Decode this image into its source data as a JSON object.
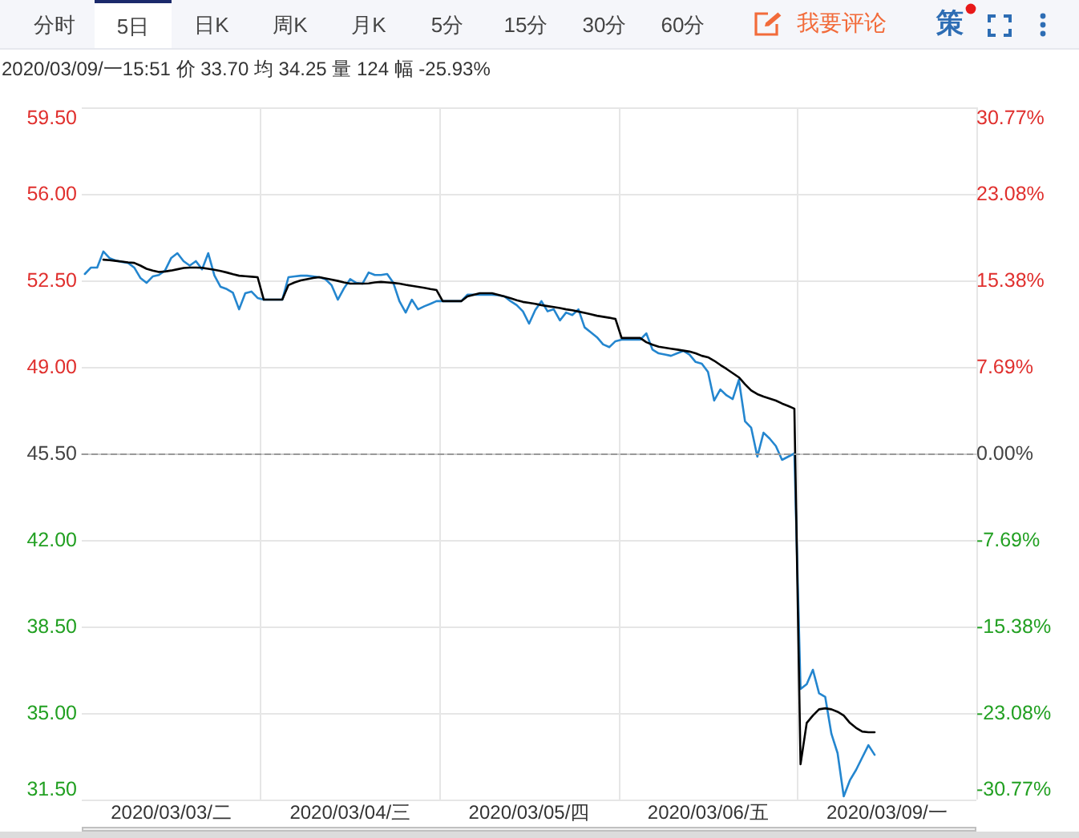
{
  "chart_data": {
    "type": "line",
    "annotations": [
      "分时",
      "5日",
      "日K",
      "周K",
      "月K",
      "5分",
      "15分",
      "30分",
      "60分",
      "我要评论",
      "策",
      "2020/03/09/一15:51 价 33.70 均 34.25 量 124 幅 -25.93%"
    ],
    "categories": [
      null,
      null,
      null,
      null,
      null,
      null,
      null,
      null,
      null,
      null,
      null,
      null,
      null,
      null,
      "2020/03/03/二",
      null,
      null,
      null,
      null,
      null,
      null,
      null,
      null,
      null,
      null,
      null,
      null,
      null,
      null,
      null,
      null,
      null,
      null,
      null,
      null,
      null,
      null,
      null,
      null,
      null,
      null,
      null,
      null,
      "2020/03/04/三",
      null,
      null,
      null,
      null,
      null,
      null,
      null,
      null,
      null,
      null,
      null,
      null,
      null,
      null,
      null,
      null,
      null,
      null,
      null,
      null,
      null,
      null,
      null,
      null,
      null,
      null,
      null,
      null,
      "2020/03/05/四",
      null,
      null,
      null,
      null,
      null,
      null,
      null,
      null,
      null,
      null,
      null,
      null,
      null,
      null,
      null,
      null,
      null,
      null,
      null,
      null,
      null,
      null,
      null,
      null,
      null,
      null,
      null,
      null,
      "2020/03/06/五",
      null,
      null,
      null,
      null,
      null,
      null,
      null,
      null,
      null,
      null,
      null,
      null,
      null,
      null,
      null,
      null,
      null,
      null,
      null,
      null,
      null,
      null,
      null,
      null,
      null,
      null,
      null,
      null,
      "2020/03/09/一",
      null,
      null,
      null,
      null,
      null,
      null,
      null,
      null,
      null,
      null,
      null,
      null,
      null,
      null
    ],
    "series": [
      {
        "color": "#2486cf",
        "values": [
          52.76,
          53.02,
          53.02,
          53.67,
          53.4,
          53.3,
          53.25,
          53.21,
          53.02,
          52.6,
          52.4,
          52.66,
          52.72,
          52.9,
          53.41,
          53.6,
          53.28,
          53.1,
          53.28,
          52.95,
          53.6,
          52.7,
          52.24,
          52.15,
          52.0,
          51.33,
          51.98,
          52.05,
          51.79,
          51.72,
          51.72,
          51.72,
          51.72,
          52.63,
          52.66,
          52.69,
          52.69,
          52.66,
          52.63,
          52.55,
          52.3,
          51.72,
          52.18,
          52.55,
          52.4,
          52.37,
          52.82,
          52.72,
          52.72,
          52.76,
          52.4,
          51.65,
          51.2,
          51.72,
          51.33,
          51.45,
          51.55,
          51.66,
          51.66,
          51.66,
          51.66,
          51.66,
          51.92,
          51.92,
          51.92,
          51.92,
          51.92,
          51.9,
          51.85,
          51.66,
          51.5,
          51.25,
          50.75,
          51.3,
          51.66,
          51.25,
          51.33,
          50.88,
          51.2,
          51.1,
          51.33,
          50.6,
          50.4,
          50.2,
          49.91,
          49.8,
          50.04,
          50.1,
          50.1,
          50.1,
          50.1,
          50.36,
          49.7,
          49.55,
          49.5,
          49.45,
          49.55,
          49.65,
          49.5,
          49.2,
          49.13,
          48.8,
          47.64,
          48.09,
          47.85,
          47.7,
          48.48,
          46.8,
          46.54,
          45.37,
          46.34,
          46.1,
          45.8,
          45.24,
          45.37,
          45.5,
          35.97,
          36.17,
          36.75,
          35.8,
          35.65,
          34.16,
          33.38,
          31.63,
          32.28,
          32.7,
          33.2,
          33.7,
          33.31,
          null,
          null,
          null,
          null,
          null,
          null,
          null,
          null,
          null,
          null,
          null,
          null,
          null,
          null,
          null,
          null
        ]
      },
      {
        "color": "#000000",
        "values": [
          null,
          null,
          null,
          53.34,
          53.32,
          53.29,
          53.26,
          53.23,
          53.21,
          53.1,
          52.97,
          52.9,
          52.84,
          52.86,
          52.9,
          52.95,
          53.0,
          53.02,
          53.02,
          53.01,
          52.97,
          52.93,
          52.88,
          52.82,
          52.75,
          52.69,
          52.67,
          52.65,
          52.63,
          51.72,
          51.72,
          51.72,
          51.72,
          52.31,
          52.42,
          52.5,
          52.55,
          52.6,
          52.63,
          52.58,
          52.53,
          52.48,
          52.42,
          52.37,
          52.37,
          52.37,
          52.38,
          52.42,
          52.44,
          52.42,
          52.4,
          52.37,
          52.32,
          52.28,
          52.24,
          52.2,
          52.15,
          52.11,
          51.66,
          51.66,
          51.66,
          51.66,
          51.85,
          51.92,
          51.98,
          51.98,
          51.98,
          51.92,
          51.85,
          51.78,
          51.7,
          51.63,
          51.59,
          51.55,
          51.5,
          51.46,
          51.42,
          51.38,
          51.33,
          51.29,
          51.24,
          51.19,
          51.13,
          51.07,
          51.03,
          50.99,
          50.94,
          50.17,
          50.17,
          50.17,
          50.17,
          50.0,
          49.9,
          49.82,
          49.78,
          49.74,
          49.7,
          49.66,
          49.62,
          49.55,
          49.45,
          49.39,
          49.25,
          49.08,
          48.92,
          48.75,
          48.58,
          48.3,
          48.05,
          47.9,
          47.8,
          47.72,
          47.64,
          47.52,
          47.42,
          47.31,
          32.93,
          34.6,
          34.9,
          35.15,
          35.19,
          35.15,
          35.05,
          34.9,
          34.6,
          34.4,
          34.25,
          34.22,
          34.22,
          null,
          null,
          null,
          null,
          null,
          null,
          null,
          null,
          null,
          null,
          null,
          null,
          null,
          null,
          null,
          null
        ]
      }
    ],
    "ylim": [
      31.5,
      59.5
    ],
    "yticks": [
      {
        "value": 31.5,
        "label": "31.50"
      },
      {
        "value": 35,
        "label": "35.00"
      },
      {
        "value": 38.5,
        "label": "38.50"
      },
      {
        "value": 42,
        "label": "42.00"
      },
      {
        "value": 45.5,
        "label": "45.50"
      },
      {
        "value": 49,
        "label": "49.00"
      },
      {
        "value": 52.5,
        "label": "52.50"
      },
      {
        "value": 56,
        "label": "56.00"
      },
      {
        "value": 59.5,
        "label": "59.50"
      }
    ],
    "y2lim": [
      -30.77,
      30.77
    ],
    "y2ticks": [
      {
        "value": -30.77,
        "label": "-30.77%"
      },
      {
        "value": -23.08,
        "label": "-23.08%"
      },
      {
        "value": -15.38,
        "label": "-15.38%"
      },
      {
        "value": -7.69,
        "label": "-7.69%"
      },
      {
        "value": 0,
        "label": "0.00%"
      },
      {
        "value": 7.69,
        "label": "7.69%"
      },
      {
        "value": 15.38,
        "label": "15.38%"
      },
      {
        "value": 23.08,
        "label": "23.08%"
      },
      {
        "value": 30.77,
        "label": "30.77%"
      }
    ],
    "ref_lines": [
      {
        "axis": "y",
        "value": 45.5,
        "color": "#999999",
        "line_style": "dashed"
      }
    ],
    "grid": true,
    "marker": "none",
    "line_style": "solid"
  }
}
